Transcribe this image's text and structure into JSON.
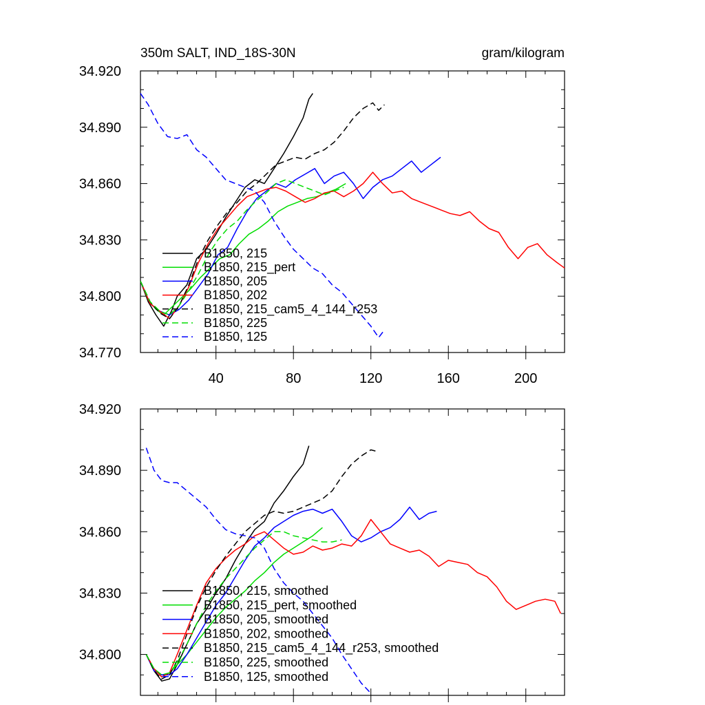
{
  "chart_data": [
    {
      "type": "line",
      "title": "350m SALT, IND_18S-30N",
      "units": "gram/kilogram",
      "ylim": [
        34.77,
        34.92
      ],
      "xlim": [
        1,
        220
      ],
      "yticks": [
        "34.770",
        "34.800",
        "34.830",
        "34.860",
        "34.890",
        "34.920"
      ],
      "xticks": [
        "40",
        "80",
        "120",
        "160",
        "200"
      ],
      "legend_position": "lower-left",
      "series": [
        {
          "name": "B1850, 215",
          "color": "#000000",
          "dash": "solid",
          "x": [
            1,
            5,
            9,
            13,
            17,
            20,
            25,
            30,
            35,
            40,
            45,
            50,
            55,
            60,
            65,
            70,
            75,
            80,
            85,
            88,
            90
          ],
          "y": [
            34.808,
            34.797,
            34.79,
            34.784,
            34.792,
            34.8,
            34.806,
            34.82,
            34.825,
            34.833,
            34.842,
            34.85,
            34.858,
            34.862,
            34.86,
            34.868,
            34.876,
            34.885,
            34.895,
            34.905,
            34.908
          ]
        },
        {
          "name": "B1850, 215_pert",
          "color": "#00dd00",
          "dash": "solid",
          "x": [
            1,
            5,
            9,
            13,
            17,
            22,
            27,
            32,
            37,
            42,
            47,
            52,
            57,
            62,
            67,
            72,
            77,
            82,
            87,
            92,
            97,
            102,
            107
          ],
          "y": [
            34.808,
            34.798,
            34.793,
            34.79,
            34.794,
            34.799,
            34.804,
            34.81,
            34.815,
            34.82,
            34.822,
            34.828,
            34.833,
            34.836,
            34.84,
            34.845,
            34.848,
            34.85,
            34.852,
            34.853,
            34.855,
            34.857,
            34.86
          ]
        },
        {
          "name": "B1850, 205",
          "color": "#0000ff",
          "dash": "solid",
          "x": [
            1,
            6,
            11,
            16,
            21,
            26,
            31,
            36,
            41,
            46,
            51,
            56,
            61,
            66,
            71,
            76,
            81,
            86,
            91,
            96,
            101,
            106,
            111,
            116,
            121,
            126,
            131,
            136,
            141,
            146,
            151,
            156
          ],
          "y": [
            34.808,
            34.796,
            34.792,
            34.79,
            34.793,
            34.798,
            34.805,
            34.812,
            34.822,
            34.826,
            34.836,
            34.845,
            34.852,
            34.856,
            34.86,
            34.858,
            34.862,
            34.865,
            34.868,
            34.86,
            34.864,
            34.866,
            34.86,
            34.852,
            34.858,
            34.862,
            34.864,
            34.868,
            34.872,
            34.866,
            34.87,
            34.874
          ]
        },
        {
          "name": "B1850, 202",
          "color": "#ff0000",
          "dash": "solid",
          "x": [
            1,
            6,
            11,
            16,
            21,
            26,
            31,
            36,
            41,
            46,
            51,
            56,
            61,
            66,
            71,
            76,
            81,
            86,
            91,
            96,
            101,
            106,
            111,
            116,
            121,
            126,
            131,
            136,
            141,
            146,
            151,
            156,
            161,
            166,
            171,
            176,
            181,
            186,
            191,
            196,
            201,
            206,
            211,
            216,
            220
          ],
          "y": [
            34.808,
            34.796,
            34.792,
            34.788,
            34.795,
            34.805,
            34.818,
            34.828,
            34.836,
            34.842,
            34.848,
            34.853,
            34.855,
            34.857,
            34.858,
            34.856,
            34.853,
            34.85,
            34.852,
            34.855,
            34.856,
            34.853,
            34.856,
            34.86,
            34.866,
            34.86,
            34.855,
            34.856,
            34.852,
            34.85,
            34.848,
            34.846,
            34.844,
            34.843,
            34.845,
            34.84,
            34.836,
            34.834,
            34.826,
            34.82,
            34.826,
            34.828,
            34.822,
            34.818,
            34.815
          ]
        },
        {
          "name": "B1850, 215_cam5_4_144_r253",
          "color": "#000000",
          "dash": "dashed",
          "x": [
            1,
            6,
            11,
            16,
            21,
            26,
            31,
            36,
            41,
            46,
            51,
            56,
            61,
            66,
            71,
            76,
            81,
            86,
            91,
            96,
            101,
            106,
            111,
            116,
            121,
            124,
            127
          ],
          "y": [
            34.808,
            34.797,
            34.791,
            34.788,
            34.795,
            34.806,
            34.82,
            34.83,
            34.838,
            34.845,
            34.85,
            34.856,
            34.86,
            34.865,
            34.87,
            34.872,
            34.874,
            34.873,
            34.876,
            34.878,
            34.882,
            34.888,
            34.895,
            34.9,
            34.903,
            34.899,
            34.902
          ]
        },
        {
          "name": "B1850, 225",
          "color": "#00dd00",
          "dash": "dashed",
          "x": [
            1,
            6,
            11,
            16,
            21,
            26,
            31,
            36,
            41,
            46,
            51,
            56,
            61,
            66,
            71,
            76,
            81,
            86,
            91,
            96,
            101,
            106
          ],
          "y": [
            34.808,
            34.797,
            34.792,
            34.79,
            34.795,
            34.803,
            34.812,
            34.822,
            34.83,
            34.836,
            34.84,
            34.846,
            34.851,
            34.855,
            34.86,
            34.862,
            34.86,
            34.858,
            34.856,
            34.854,
            34.856,
            34.858
          ]
        },
        {
          "name": "B1850, 125",
          "color": "#0000ff",
          "dash": "dashed",
          "x": [
            1,
            5,
            10,
            15,
            20,
            25,
            30,
            35,
            40,
            45,
            50,
            55,
            60,
            65,
            70,
            75,
            80,
            85,
            90,
            95,
            100,
            105,
            110,
            115,
            120,
            124,
            127
          ],
          "y": [
            34.908,
            34.902,
            34.892,
            34.885,
            34.884,
            34.886,
            34.878,
            34.874,
            34.868,
            34.862,
            34.86,
            34.858,
            34.856,
            34.85,
            34.84,
            34.832,
            34.825,
            34.82,
            34.815,
            34.812,
            34.806,
            34.802,
            34.796,
            34.79,
            34.784,
            34.778,
            34.782
          ]
        }
      ]
    },
    {
      "type": "line",
      "ylim": [
        34.78,
        34.92
      ],
      "xlim": [
        1,
        220
      ],
      "yticks": [
        "34.800",
        "34.830",
        "34.860",
        "34.890",
        "34.920"
      ],
      "legend_position": "lower-left",
      "series": [
        {
          "name": "B1850, 215, smoothed",
          "color": "#000000",
          "dash": "solid",
          "x": [
            4,
            8,
            12,
            16,
            20,
            25,
            30,
            35,
            40,
            45,
            50,
            55,
            60,
            65,
            70,
            75,
            80,
            85,
            88
          ],
          "y": [
            34.8,
            34.792,
            34.787,
            34.788,
            34.795,
            34.805,
            34.815,
            34.822,
            34.83,
            34.837,
            34.846,
            34.854,
            34.861,
            34.865,
            34.874,
            34.88,
            34.887,
            34.893,
            34.902
          ]
        },
        {
          "name": "B1850, 215_pert, smoothed",
          "color": "#00dd00",
          "dash": "solid",
          "x": [
            4,
            8,
            12,
            16,
            20,
            25,
            30,
            35,
            40,
            45,
            50,
            55,
            60,
            65,
            70,
            75,
            80,
            85,
            90,
            95
          ],
          "y": [
            34.8,
            34.793,
            34.79,
            34.791,
            34.795,
            34.8,
            34.806,
            34.812,
            34.818,
            34.823,
            34.827,
            34.831,
            34.836,
            34.84,
            34.845,
            34.849,
            34.852,
            34.855,
            34.858,
            34.862
          ]
        },
        {
          "name": "B1850, 205, smoothed",
          "color": "#0000ff",
          "dash": "solid",
          "x": [
            4,
            8,
            12,
            16,
            20,
            25,
            30,
            35,
            40,
            45,
            50,
            55,
            60,
            65,
            70,
            75,
            80,
            85,
            90,
            95,
            100,
            105,
            110,
            115,
            120,
            125,
            130,
            135,
            140,
            145,
            150,
            154
          ],
          "y": [
            34.8,
            34.792,
            34.79,
            34.79,
            34.793,
            34.8,
            34.808,
            34.816,
            34.824,
            34.83,
            34.838,
            34.846,
            34.853,
            34.857,
            34.862,
            34.865,
            34.868,
            34.87,
            34.871,
            34.869,
            34.871,
            34.865,
            34.858,
            34.855,
            34.857,
            34.86,
            34.862,
            34.866,
            34.872,
            34.866,
            34.869,
            34.87
          ]
        },
        {
          "name": "B1850, 202, smoothed",
          "color": "#ff0000",
          "dash": "solid",
          "x": [
            4,
            8,
            12,
            16,
            20,
            25,
            30,
            35,
            40,
            45,
            50,
            55,
            60,
            65,
            70,
            75,
            80,
            85,
            90,
            95,
            100,
            105,
            110,
            115,
            120,
            125,
            130,
            135,
            140,
            145,
            150,
            155,
            160,
            165,
            170,
            175,
            180,
            185,
            190,
            195,
            200,
            205,
            210,
            215,
            218
          ],
          "y": [
            34.8,
            34.793,
            34.789,
            34.791,
            34.8,
            34.812,
            34.824,
            34.835,
            34.842,
            34.847,
            34.851,
            34.854,
            34.858,
            34.86,
            34.856,
            34.852,
            34.849,
            34.85,
            34.853,
            34.851,
            34.852,
            34.854,
            34.853,
            34.858,
            34.866,
            34.86,
            34.854,
            34.852,
            34.85,
            34.851,
            34.848,
            34.843,
            34.846,
            34.845,
            34.844,
            34.84,
            34.838,
            34.833,
            34.826,
            34.822,
            34.824,
            34.826,
            34.827,
            34.826,
            34.82
          ]
        },
        {
          "name": "B1850, 215_cam5_4_144_r253, smoothed",
          "color": "#000000",
          "dash": "dashed",
          "x": [
            4,
            8,
            12,
            16,
            20,
            25,
            30,
            35,
            40,
            45,
            50,
            55,
            60,
            65,
            70,
            75,
            80,
            85,
            90,
            95,
            100,
            105,
            110,
            115,
            120,
            124
          ],
          "y": [
            34.8,
            34.792,
            34.788,
            34.79,
            34.797,
            34.81,
            34.823,
            34.833,
            34.841,
            34.848,
            34.854,
            34.86,
            34.864,
            34.868,
            34.87,
            34.869,
            34.87,
            34.872,
            34.874,
            34.876,
            34.88,
            34.887,
            34.893,
            34.897,
            34.9,
            34.899
          ]
        },
        {
          "name": "B1850, 225, smoothed",
          "color": "#00dd00",
          "dash": "dashed",
          "x": [
            4,
            8,
            12,
            16,
            20,
            25,
            30,
            35,
            40,
            45,
            50,
            55,
            60,
            65,
            70,
            75,
            80,
            85,
            90,
            95,
            100,
            105
          ],
          "y": [
            34.8,
            34.793,
            34.79,
            34.791,
            34.796,
            34.805,
            34.815,
            34.824,
            34.831,
            34.837,
            34.842,
            34.847,
            34.852,
            34.856,
            34.86,
            34.86,
            34.858,
            34.857,
            34.856,
            34.855,
            34.855,
            34.856
          ]
        },
        {
          "name": "B1850, 125, smoothed",
          "color": "#0000ff",
          "dash": "dashed",
          "x": [
            4,
            8,
            12,
            16,
            20,
            25,
            30,
            35,
            40,
            45,
            50,
            55,
            60,
            65,
            70,
            75,
            80,
            85,
            90,
            95,
            100,
            105,
            110,
            115,
            120
          ],
          "y": [
            34.901,
            34.89,
            34.885,
            34.884,
            34.884,
            34.88,
            34.876,
            34.872,
            34.866,
            34.861,
            34.859,
            34.858,
            34.857,
            34.852,
            34.842,
            34.835,
            34.83,
            34.826,
            34.82,
            34.814,
            34.808,
            34.8,
            34.793,
            34.786,
            34.781
          ]
        }
      ]
    }
  ]
}
